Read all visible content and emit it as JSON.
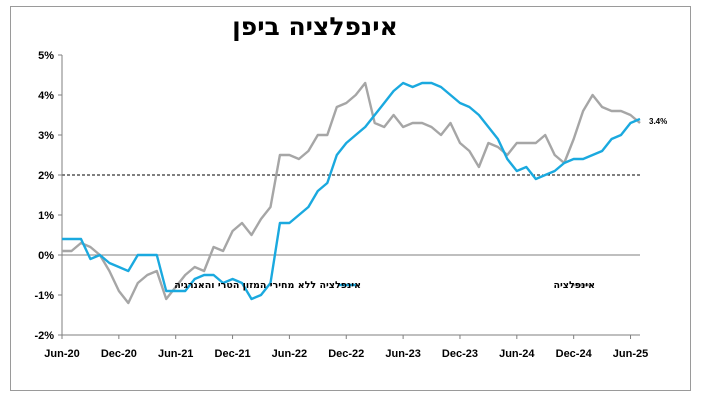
{
  "chart_data": {
    "type": "line",
    "title": "אינפלציה ביפן",
    "x_tick_labels": [
      "Jun-20",
      "Dec-20",
      "Jun-21",
      "Dec-21",
      "Jun-22",
      "Dec-22",
      "Jun-23",
      "Dec-23",
      "Jun-24",
      "Dec-24",
      "Jun-25"
    ],
    "y_tick_labels": [
      "5%",
      "4%",
      "3%",
      "2%",
      "1%",
      "0%",
      "-1%",
      "-2%"
    ],
    "ylim": [
      -2,
      5
    ],
    "x_range": [
      "Jun-20",
      "Jun-25"
    ],
    "reference_line": {
      "value": 2,
      "style": "dashed"
    },
    "annotation": "3.4%",
    "legend_position": "lower-right",
    "series": [
      {
        "name": "אינפלציה",
        "color": "#a6a6a6",
        "values": [
          0.1,
          0.1,
          0.3,
          0.2,
          0.0,
          -0.4,
          -0.9,
          -1.2,
          -0.7,
          -0.5,
          -0.4,
          -1.1,
          -0.8,
          -0.5,
          -0.3,
          -0.4,
          0.2,
          0.1,
          0.6,
          0.8,
          0.5,
          0.9,
          1.2,
          2.5,
          2.5,
          2.4,
          2.6,
          3.0,
          3.0,
          3.7,
          3.8,
          4.0,
          4.3,
          3.3,
          3.2,
          3.5,
          3.2,
          3.3,
          3.3,
          3.2,
          3.0,
          3.3,
          2.8,
          2.6,
          2.2,
          2.8,
          2.7,
          2.5,
          2.8,
          2.8,
          2.8,
          3.0,
          2.5,
          2.3,
          2.9,
          3.6,
          4.0,
          3.7,
          3.6,
          3.6,
          3.5,
          3.3
        ]
      },
      {
        "name": "אינפלציה ללא מחירי המזון הטרי והאנרגיה",
        "color": "#1aa9df",
        "values": [
          0.4,
          0.4,
          0.4,
          -0.1,
          0.0,
          -0.2,
          -0.3,
          -0.4,
          0.0,
          0.0,
          0.0,
          -0.9,
          -0.9,
          -0.9,
          -0.6,
          -0.5,
          -0.5,
          -0.7,
          -0.6,
          -0.7,
          -1.1,
          -1.0,
          -0.7,
          0.8,
          0.8,
          1.0,
          1.2,
          1.6,
          1.8,
          2.5,
          2.8,
          3.0,
          3.2,
          3.5,
          3.8,
          4.1,
          4.3,
          4.2,
          4.3,
          4.3,
          4.2,
          4.0,
          3.8,
          3.7,
          3.5,
          3.2,
          2.9,
          2.4,
          2.1,
          2.2,
          1.9,
          2.0,
          2.1,
          2.3,
          2.4,
          2.4,
          2.5,
          2.6,
          2.9,
          3.0,
          3.3,
          3.4
        ]
      }
    ]
  }
}
